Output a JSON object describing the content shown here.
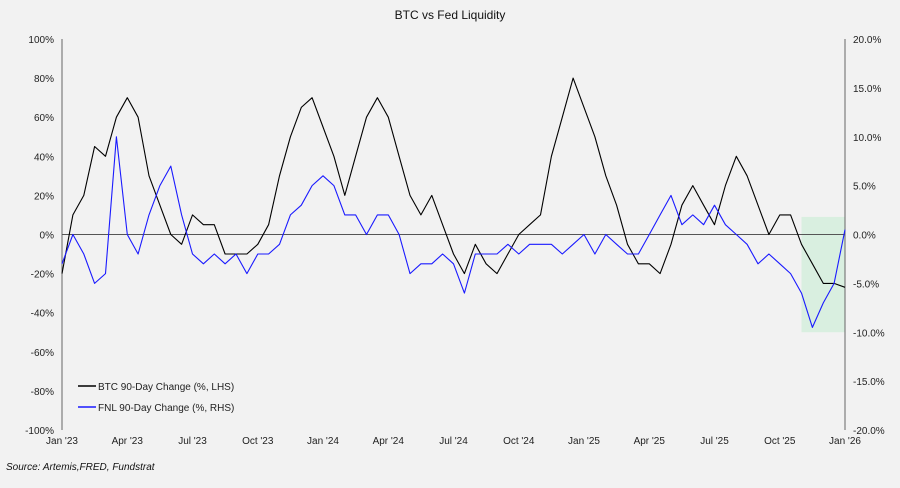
{
  "chart_data": {
    "type": "line",
    "title": "BTC vs Fed Liquidity",
    "source": "Source: Artemis,FRED, Fundstrat",
    "x_start": "Jan '23",
    "x_step_months": 0.5,
    "x_ticks": [
      "Jan '23",
      "Apr '23",
      "Jul '23",
      "Oct '23",
      "Jan '24",
      "Apr '24",
      "Jul '24",
      "Oct '24",
      "Jan '25",
      "Apr '25",
      "Jul '25",
      "Oct '25",
      "Jan '26"
    ],
    "y_left": {
      "range": [
        -100,
        100
      ],
      "ticks": [
        "100%",
        "80%",
        "60%",
        "40%",
        "20%",
        "0%",
        "-20%",
        "-40%",
        "-60%",
        "-80%",
        "-100%"
      ]
    },
    "y_right": {
      "range": [
        -20,
        20
      ],
      "ticks": [
        "20.0%",
        "15.0%",
        "10.0%",
        "5.0%",
        "0.0%",
        "-5.0%",
        "-10.0%",
        "-15.0%",
        "-20.0%"
      ]
    },
    "legend_position": "bottom-left",
    "series": [
      {
        "name": "BTC 90-Day Change (%, LHS)",
        "axis": "left",
        "color": "#000000",
        "values": [
          -20,
          10,
          20,
          45,
          40,
          60,
          70,
          60,
          30,
          15,
          0,
          -5,
          10,
          5,
          5,
          -10,
          -10,
          -10,
          -5,
          5,
          30,
          50,
          65,
          70,
          55,
          40,
          20,
          40,
          60,
          70,
          60,
          40,
          20,
          10,
          20,
          5,
          -10,
          -20,
          -5,
          -15,
          -20,
          -10,
          0,
          5,
          10,
          40,
          60,
          80,
          65,
          50,
          30,
          15,
          -5,
          -15,
          -15,
          -20,
          -5,
          15,
          25,
          15,
          5,
          25,
          40,
          30,
          15,
          0,
          10,
          10,
          -5,
          -15,
          -25,
          -25,
          -27
        ]
      },
      {
        "name": "FNL 90-Day Change (%, RHS)",
        "axis": "right",
        "color": "#1a1aff",
        "values": [
          -3,
          0,
          -2,
          -5,
          -4,
          10,
          0,
          -2,
          2,
          5,
          7,
          2,
          -2,
          -3,
          -2,
          -3,
          -2,
          -4,
          -2,
          -2,
          -1,
          2,
          3,
          5,
          6,
          5,
          2,
          2,
          0,
          2,
          2,
          0,
          -4,
          -3,
          -3,
          -2,
          -3,
          -6,
          -2,
          -2,
          -2,
          -1,
          -2,
          -1,
          -1,
          -1,
          -2,
          -1,
          0,
          -2,
          0,
          -1,
          -2,
          -2,
          0,
          2,
          4,
          1,
          2,
          1,
          3,
          1,
          0,
          -1,
          -3,
          -2,
          -3,
          -4,
          -6,
          -9.5,
          -7,
          -5,
          0.5
        ]
      }
    ],
    "highlight_region": {
      "x_from_month": 34,
      "x_to_month": 36,
      "y_right_range": [
        -10,
        1.8
      ],
      "color": "#d9efe0"
    }
  }
}
